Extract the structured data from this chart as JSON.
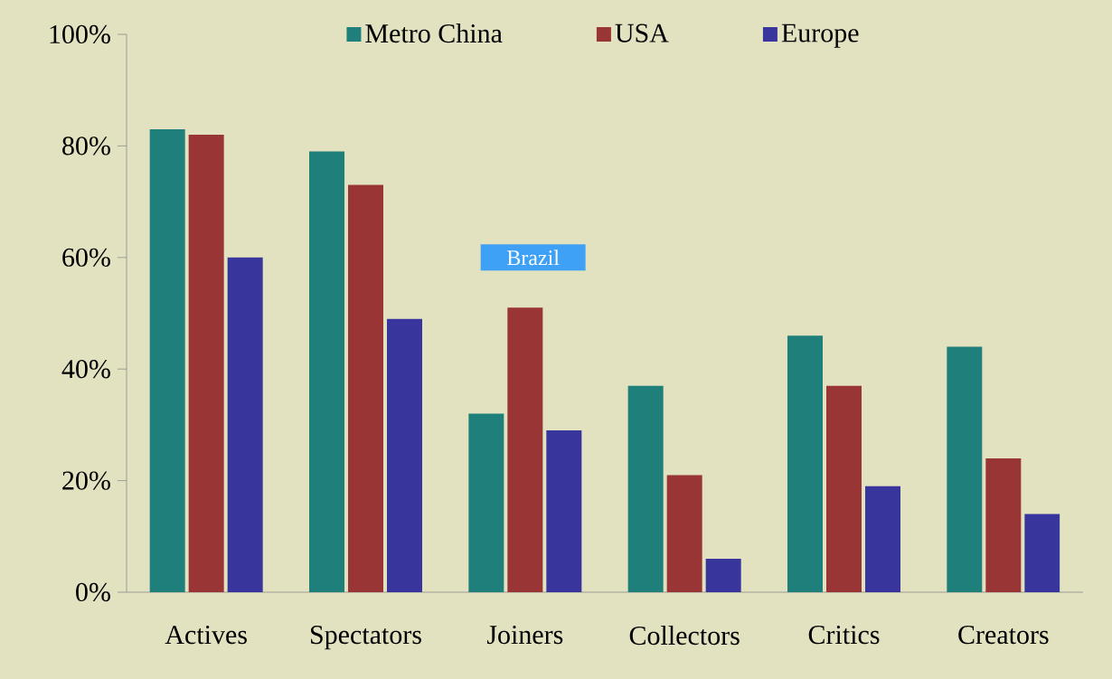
{
  "chart_data": {
    "type": "bar",
    "legend": "top",
    "categories": [
      "Actives",
      "Spectators",
      "Joiners",
      "Collectors",
      "Critics",
      "Creators"
    ],
    "series": [
      {
        "name": "Metro China",
        "color": "#1f7f7b",
        "values": [
          83,
          79,
          32,
          37,
          46,
          44
        ]
      },
      {
        "name": "USA",
        "color": "#993535",
        "values": [
          82,
          73,
          51,
          21,
          37,
          24
        ]
      },
      {
        "name": "Europe",
        "color": "#38369c",
        "values": [
          60,
          49,
          29,
          6,
          19,
          14
        ]
      }
    ],
    "ylim": [
      0,
      100
    ],
    "yticks": [
      {
        "value": 0,
        "label": "0%"
      },
      {
        "value": 20,
        "label": "20%"
      },
      {
        "value": 40,
        "label": "40%"
      },
      {
        "value": 60,
        "label": "60%"
      },
      {
        "value": 80,
        "label": "80%"
      },
      {
        "value": 100,
        "label": "100%"
      }
    ],
    "annotations": [
      "Brazil"
    ]
  }
}
